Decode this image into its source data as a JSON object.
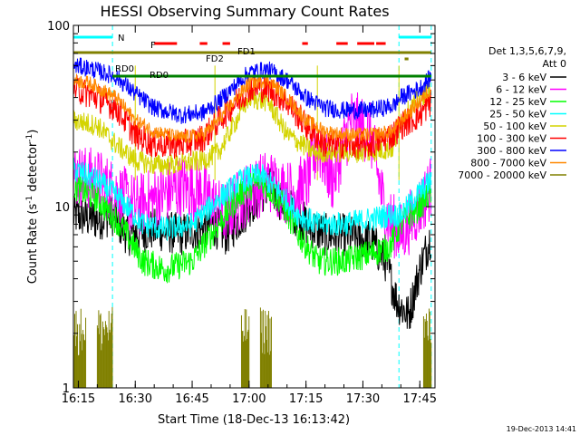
{
  "chart_data": {
    "type": "line",
    "title": "HESSI Observing Summary Count Rates",
    "xlabel": "Start Time (18-Dec-13 16:13:42)",
    "ylabel": "Count Rate (s⁻¹ detector⁻¹)",
    "ylabel_main": "Count Rate (s",
    "ylabel_sup1": "-1",
    "ylabel_mid": " detector",
    "ylabel_sup2": "-1",
    "ylabel_end": ")",
    "y_scale": "log",
    "ylim": [
      1,
      100
    ],
    "xlim": [
      "16:13:42",
      "17:49:00"
    ],
    "x_ticks": [
      "16:15",
      "16:30",
      "16:45",
      "17:00",
      "17:15",
      "17:30",
      "17:45"
    ],
    "y_ticks": [
      "1",
      "10",
      "100"
    ],
    "grid": false,
    "timestamp": "19-Dec-2013 14:41",
    "legend": {
      "placement": "right",
      "header": [
        "Det 1,3,5,6,7,9,",
        "Att 0"
      ],
      "entries": [
        {
          "label": "3 - 6 keV",
          "color": "#000000"
        },
        {
          "label": "6 - 12 keV",
          "color": "#ff00ff"
        },
        {
          "label": "12 - 25 keV",
          "color": "#00ff00"
        },
        {
          "label": "25 - 50 keV",
          "color": "#00ffff"
        },
        {
          "label": "50 - 100 keV",
          "color": "#d4d400"
        },
        {
          "label": "100 - 300 keV",
          "color": "#ff0000"
        },
        {
          "label": "300 - 800 keV",
          "color": "#0000ff"
        },
        {
          "label": "800 - 7000 keV",
          "color": "#ff8800"
        },
        {
          "label": "7000 - 20000 keV",
          "color": "#808000"
        }
      ]
    },
    "flags": [
      {
        "label": "N",
        "color": "#00ffff",
        "intervals": [
          [
            "16:13:42",
            "16:24:00"
          ],
          [
            "17:39:30",
            "17:48:00"
          ]
        ]
      },
      {
        "label": "F",
        "color": "#ff0000",
        "intervals": [
          [
            "16:35:00",
            "16:41:00"
          ],
          [
            "16:47:00",
            "16:49:00"
          ],
          [
            "16:53:00",
            "16:55:00"
          ],
          [
            "17:14:00",
            "17:15:30"
          ],
          [
            "17:23:00",
            "17:26:00"
          ],
          [
            "17:28:30",
            "17:33:00"
          ],
          [
            "17:33:30",
            "17:36:00"
          ]
        ]
      },
      {
        "label": "FD1",
        "color": "#808000",
        "intervals": [
          [
            "16:13:42",
            "17:48:00"
          ]
        ]
      },
      {
        "label": "FD2",
        "color": "#808000",
        "intervals": [
          [
            "17:41:00",
            "17:42:00"
          ]
        ]
      },
      {
        "label": "RD0",
        "color": "#008000",
        "intervals": [
          [
            "16:24:00",
            "17:48:00"
          ]
        ]
      },
      {
        "label": "RD0",
        "color": "#008000",
        "intervals": []
      }
    ],
    "eclipse_markers": [
      "16:24:00",
      "17:39:30",
      "17:48:00"
    ],
    "level_markers": [
      "16:30:00",
      "16:51:00",
      "17:18:00",
      "17:39:30"
    ],
    "series": [
      {
        "name": "3 - 6 keV",
        "color": "#000000",
        "noise": 0.12,
        "t": [
          "16:13:42",
          "16:20",
          "16:24",
          "16:28",
          "16:35",
          "16:42",
          "16:50",
          "16:54",
          "17:00",
          "17:05",
          "17:10",
          "17:15",
          "17:20",
          "17:25",
          "17:32",
          "17:36",
          "17:39",
          "17:42",
          "17:45",
          "17:48"
        ],
        "v": [
          9,
          8.5,
          9,
          7,
          7.5,
          7,
          8,
          7,
          10,
          13,
          10,
          8,
          7,
          7,
          6.5,
          5,
          3,
          2.5,
          4.5,
          7
        ]
      },
      {
        "name": "6 - 12 keV",
        "color": "#ff00ff",
        "noise": 0.18,
        "t": [
          "16:13:42",
          "16:20",
          "16:25",
          "16:30",
          "16:35",
          "16:42",
          "16:48",
          "16:53",
          "17:00",
          "17:05",
          "17:10",
          "17:15",
          "17:18",
          "17:22",
          "17:27",
          "17:32",
          "17:36",
          "17:40",
          "17:45",
          "17:48"
        ],
        "v": [
          15,
          14,
          12,
          10,
          11,
          13,
          12,
          9,
          12,
          14,
          12,
          13,
          22,
          14,
          30,
          25,
          9,
          7,
          10,
          13
        ]
      },
      {
        "name": "12 - 25 keV",
        "color": "#00ff00",
        "noise": 0.08,
        "t": [
          "16:13:42",
          "16:20",
          "16:26",
          "16:32",
          "16:38",
          "16:45",
          "16:52",
          "16:58",
          "17:03",
          "17:08",
          "17:13",
          "17:18",
          "17:25",
          "17:32",
          "17:37",
          "17:40",
          "17:45",
          "17:48"
        ],
        "v": [
          13,
          11,
          8,
          5,
          4.5,
          5,
          8,
          12,
          14,
          11,
          7,
          5,
          5,
          5.5,
          6,
          8,
          10,
          12
        ]
      },
      {
        "name": "25 - 50 keV",
        "color": "#00ffff",
        "noise": 0.07,
        "t": [
          "16:13:42",
          "16:20",
          "16:26",
          "16:32",
          "16:38",
          "16:45",
          "16:52",
          "16:58",
          "17:03",
          "17:08",
          "17:13",
          "17:18",
          "17:25",
          "17:32",
          "17:37",
          "17:40",
          "17:45",
          "17:48"
        ],
        "v": [
          16,
          14,
          11,
          8,
          7.5,
          8,
          11,
          14,
          15,
          12,
          9,
          8,
          8,
          8.5,
          9,
          9,
          12,
          14
        ]
      },
      {
        "name": "50 - 100 keV",
        "color": "#d4d400",
        "noise": 0.06,
        "t": [
          "16:13:42",
          "16:20",
          "16:25",
          "16:30",
          "16:35",
          "16:40",
          "16:48",
          "16:52",
          "17:00",
          "17:05",
          "17:10",
          "17:17",
          "17:20",
          "17:25",
          "17:32",
          "17:38",
          "17:40",
          "17:45",
          "17:48"
        ],
        "v": [
          30,
          28,
          22,
          18,
          17,
          17,
          18,
          20,
          40,
          38,
          25,
          20,
          20,
          20,
          20,
          21,
          30,
          40,
          45
        ]
      },
      {
        "name": "100 - 300 keV",
        "color": "#ff0000",
        "noise": 0.08,
        "t": [
          "16:13:42",
          "16:20",
          "16:25",
          "16:30",
          "16:35",
          "16:42",
          "16:48",
          "16:52",
          "17:00",
          "17:05",
          "17:10",
          "17:15",
          "17:20",
          "17:25",
          "17:32",
          "17:38",
          "17:40",
          "17:45",
          "17:48"
        ],
        "v": [
          45,
          40,
          35,
          25,
          22,
          22,
          24,
          30,
          45,
          45,
          38,
          28,
          22,
          22,
          22,
          25,
          28,
          32,
          38
        ]
      },
      {
        "name": "300 - 800 keV",
        "color": "#0000ff",
        "noise": 0.05,
        "t": [
          "16:13:42",
          "16:18",
          "16:25",
          "16:30",
          "16:35",
          "16:42",
          "16:48",
          "16:52",
          "17:00",
          "17:05",
          "17:10",
          "17:15",
          "17:20",
          "17:25",
          "17:32",
          "17:38",
          "17:40",
          "17:45",
          "17:48"
        ],
        "v": [
          60,
          58,
          52,
          42,
          35,
          32,
          33,
          38,
          55,
          57,
          50,
          40,
          35,
          34,
          34,
          36,
          40,
          45,
          52
        ]
      },
      {
        "name": "800 - 7000 keV",
        "color": "#ff8800",
        "noise": 0.04,
        "t": [
          "16:13:42",
          "16:18",
          "16:25",
          "16:30",
          "16:35",
          "16:42",
          "16:48",
          "16:52",
          "17:00",
          "17:05",
          "17:10",
          "17:15",
          "17:20",
          "17:25",
          "17:32",
          "17:38",
          "17:40",
          "17:45",
          "17:48"
        ],
        "v": [
          50,
          48,
          40,
          30,
          26,
          24,
          25,
          30,
          48,
          50,
          40,
          30,
          26,
          25,
          25,
          26,
          30,
          38,
          45
        ]
      },
      {
        "name": "7000 - 20000 keV",
        "color": "#808000",
        "noise": 0.0,
        "t": [
          "16:13:42",
          "16:17",
          "16:20",
          "16:24",
          "16:58",
          "17:00",
          "17:03",
          "17:06",
          "17:46",
          "17:48"
        ],
        "v": [
          2,
          2,
          2,
          2,
          2,
          2,
          2,
          2,
          2,
          2
        ]
      }
    ]
  }
}
